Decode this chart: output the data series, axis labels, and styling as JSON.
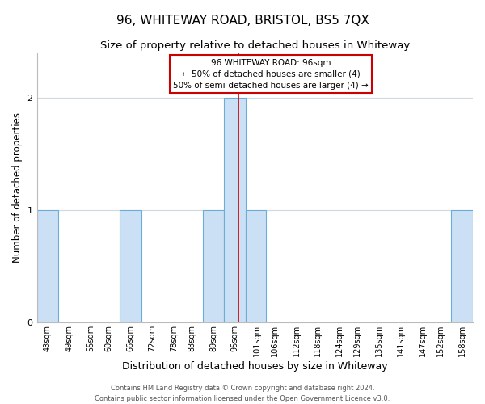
{
  "title": "96, WHITEWAY ROAD, BRISTOL, BS5 7QX",
  "subtitle": "Size of property relative to detached houses in Whiteway",
  "xlabel": "Distribution of detached houses by size in Whiteway",
  "ylabel": "Number of detached properties",
  "bin_labels": [
    "43sqm",
    "49sqm",
    "55sqm",
    "60sqm",
    "66sqm",
    "72sqm",
    "78sqm",
    "83sqm",
    "89sqm",
    "95sqm",
    "101sqm",
    "106sqm",
    "112sqm",
    "118sqm",
    "124sqm",
    "129sqm",
    "135sqm",
    "141sqm",
    "147sqm",
    "152sqm",
    "158sqm"
  ],
  "bin_edges": [
    40,
    46,
    52,
    57.5,
    63,
    69,
    75,
    80.5,
    86,
    92,
    98,
    103.5,
    109,
    115,
    121,
    126.5,
    132,
    138,
    144,
    149.5,
    155,
    161
  ],
  "bin_centers": [
    43,
    49,
    55,
    60,
    66,
    72,
    78,
    83,
    89,
    95,
    101,
    106,
    112,
    118,
    124,
    129,
    135,
    141,
    147,
    152,
    158
  ],
  "counts": [
    1,
    0,
    0,
    0,
    1,
    0,
    0,
    0,
    1,
    2,
    1,
    0,
    0,
    0,
    0,
    0,
    0,
    0,
    0,
    0,
    1
  ],
  "bar_color": "#cce0f5",
  "bar_edge_color": "#6aaed6",
  "property_line_x": 96,
  "property_line_color": "#cc0000",
  "annotation_line1": "96 WHITEWAY ROAD: 96sqm",
  "annotation_line2": "← 50% of detached houses are smaller (4)",
  "annotation_line3": "50% of semi-detached houses are larger (4) →",
  "annotation_box_color": "#ffffff",
  "annotation_box_edge_color": "#cc0000",
  "ylim": [
    0,
    2.4
  ],
  "yticks": [
    0,
    1,
    2
  ],
  "footer_line1": "Contains HM Land Registry data © Crown copyright and database right 2024.",
  "footer_line2": "Contains public sector information licensed under the Open Government Licence v3.0.",
  "title_fontsize": 11,
  "subtitle_fontsize": 9.5,
  "xlabel_fontsize": 9,
  "ylabel_fontsize": 8.5,
  "tick_fontsize": 7,
  "annotation_fontsize": 7.5,
  "footer_fontsize": 6,
  "background_color": "#ffffff",
  "grid_color": "#d0d8e0"
}
